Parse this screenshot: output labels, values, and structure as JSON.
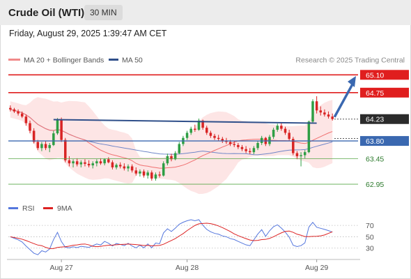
{
  "header": {
    "title": "Crude Oil (WTI)",
    "period": "30 MIN",
    "timestamp": "Friday, August 29, 2025 1:39:47 AM CET"
  },
  "legend": {
    "ma20": "MA 20 + Bollinger Bands",
    "ma50": "MA 50",
    "credit": "Research © 2025 Trading Central"
  },
  "colors": {
    "resistance": "#e01e1e",
    "pivot": "#3a68b0",
    "support": "#5aa84a",
    "current": "#2b2b2b",
    "trendline": "#2f4f8a",
    "ma20": "#f07070",
    "ma50": "#6f86c8",
    "bollinger_fill": "#fde2e2",
    "candle_up": "#2e9e44",
    "candle_down": "#d82424",
    "rsi": "#5577dd",
    "rsi_ma": "#dd2222"
  },
  "chart_data": {
    "type": "candlestick",
    "x_ticks": [
      "Aug 27",
      "Aug 28",
      "Aug 29"
    ],
    "y_range": [
      62.8,
      65.2
    ],
    "levels": [
      {
        "value": 65.1,
        "label": "65.10",
        "role": "resistance"
      },
      {
        "value": 64.75,
        "label": "64.75",
        "role": "resistance"
      },
      {
        "value": 64.23,
        "label": "64.23",
        "role": "current"
      },
      {
        "value": 63.8,
        "label": "63.80",
        "role": "pivot"
      },
      {
        "value": 63.45,
        "label": "63.45",
        "role": "support"
      },
      {
        "value": 62.95,
        "label": "62.95",
        "role": "support"
      }
    ],
    "candles": [
      [
        64.45,
        64.5,
        64.38,
        64.42
      ],
      [
        64.42,
        64.45,
        64.35,
        64.38
      ],
      [
        64.38,
        64.42,
        64.3,
        64.34
      ],
      [
        64.34,
        64.38,
        64.25,
        64.28
      ],
      [
        64.28,
        64.32,
        64.1,
        64.15
      ],
      [
        64.15,
        64.2,
        63.95,
        64.0
      ],
      [
        64.0,
        64.05,
        63.75,
        63.78
      ],
      [
        63.78,
        63.82,
        63.62,
        63.66
      ],
      [
        63.66,
        63.78,
        63.6,
        63.74
      ],
      [
        63.74,
        63.8,
        63.62,
        63.66
      ],
      [
        63.66,
        63.76,
        63.58,
        63.72
      ],
      [
        63.72,
        64.0,
        63.7,
        63.95
      ],
      [
        63.95,
        64.25,
        63.92,
        64.22
      ],
      [
        64.22,
        64.26,
        63.78,
        63.82
      ],
      [
        63.82,
        63.86,
        63.38,
        63.42
      ],
      [
        63.42,
        63.5,
        63.3,
        63.36
      ],
      [
        63.36,
        63.44,
        63.28,
        63.4
      ],
      [
        63.4,
        63.46,
        63.3,
        63.34
      ],
      [
        63.34,
        63.42,
        63.28,
        63.38
      ],
      [
        63.38,
        63.44,
        63.3,
        63.35
      ],
      [
        63.35,
        63.42,
        63.28,
        63.32
      ],
      [
        63.32,
        63.4,
        63.26,
        63.36
      ],
      [
        63.36,
        63.44,
        63.3,
        63.4
      ],
      [
        63.4,
        63.46,
        63.33,
        63.36
      ],
      [
        63.36,
        63.46,
        63.32,
        63.44
      ],
      [
        63.44,
        63.48,
        63.36,
        63.38
      ],
      [
        63.38,
        63.42,
        63.24,
        63.28
      ],
      [
        63.28,
        63.36,
        63.24,
        63.33
      ],
      [
        63.33,
        63.38,
        63.26,
        63.3
      ],
      [
        63.3,
        63.36,
        63.22,
        63.26
      ],
      [
        63.26,
        63.34,
        63.2,
        63.3
      ],
      [
        63.3,
        63.34,
        63.18,
        63.22
      ],
      [
        63.22,
        63.28,
        63.12,
        63.16
      ],
      [
        63.16,
        63.24,
        63.1,
        63.2
      ],
      [
        63.2,
        63.24,
        63.08,
        63.12
      ],
      [
        63.12,
        63.22,
        63.06,
        63.18
      ],
      [
        63.18,
        63.22,
        63.02,
        63.06
      ],
      [
        63.06,
        63.18,
        63.02,
        63.14
      ],
      [
        63.14,
        63.2,
        63.08,
        63.12
      ],
      [
        63.12,
        63.4,
        63.1,
        63.36
      ],
      [
        63.36,
        63.55,
        63.32,
        63.5
      ],
      [
        63.5,
        63.55,
        63.4,
        63.44
      ],
      [
        63.44,
        63.6,
        63.42,
        63.56
      ],
      [
        63.56,
        63.78,
        63.54,
        63.74
      ],
      [
        63.74,
        63.9,
        63.7,
        63.86
      ],
      [
        63.86,
        64.0,
        63.82,
        63.96
      ],
      [
        63.96,
        64.08,
        63.92,
        64.04
      ],
      [
        64.04,
        64.12,
        63.98,
        64.02
      ],
      [
        64.02,
        64.24,
        64.0,
        64.2
      ],
      [
        64.2,
        64.22,
        64.02,
        64.06
      ],
      [
        64.06,
        64.1,
        63.92,
        63.96
      ],
      [
        63.96,
        64.0,
        63.86,
        63.9
      ],
      [
        63.9,
        63.94,
        63.82,
        63.86
      ],
      [
        63.86,
        63.92,
        63.8,
        63.84
      ],
      [
        63.84,
        63.88,
        63.76,
        63.8
      ],
      [
        63.8,
        63.86,
        63.74,
        63.78
      ],
      [
        63.78,
        63.82,
        63.7,
        63.74
      ],
      [
        63.74,
        63.8,
        63.68,
        63.72
      ],
      [
        63.72,
        63.76,
        63.64,
        63.68
      ],
      [
        63.68,
        63.72,
        63.6,
        63.64
      ],
      [
        63.64,
        63.7,
        63.56,
        63.6
      ],
      [
        63.6,
        63.66,
        63.54,
        63.58
      ],
      [
        63.58,
        63.7,
        63.54,
        63.66
      ],
      [
        63.66,
        63.8,
        63.62,
        63.76
      ],
      [
        63.76,
        63.9,
        63.72,
        63.86
      ],
      [
        63.86,
        63.88,
        63.7,
        63.74
      ],
      [
        63.74,
        63.92,
        63.7,
        63.88
      ],
      [
        63.88,
        64.06,
        63.84,
        64.02
      ],
      [
        64.02,
        64.14,
        63.98,
        64.1
      ],
      [
        64.1,
        64.16,
        64.0,
        64.04
      ],
      [
        64.04,
        64.08,
        63.92,
        63.96
      ],
      [
        63.96,
        64.02,
        63.8,
        63.84
      ],
      [
        63.84,
        63.88,
        63.52,
        63.56
      ],
      [
        63.56,
        63.6,
        63.44,
        63.5
      ],
      [
        63.5,
        63.58,
        63.3,
        63.52
      ],
      [
        63.52,
        63.62,
        63.46,
        63.58
      ],
      [
        63.58,
        64.2,
        63.56,
        64.18
      ],
      [
        64.18,
        64.62,
        64.14,
        64.58
      ],
      [
        64.58,
        64.68,
        64.34,
        64.4
      ],
      [
        64.4,
        64.48,
        64.3,
        64.36
      ],
      [
        64.36,
        64.42,
        64.28,
        64.32
      ],
      [
        64.32,
        64.38,
        64.24,
        64.28
      ],
      [
        64.28,
        64.34,
        64.2,
        64.23
      ]
    ],
    "rsi_ticks": [
      70,
      50,
      30
    ],
    "rsi_range": [
      10,
      80
    ],
    "rsi_legend": [
      "RSI",
      "9MA"
    ]
  }
}
